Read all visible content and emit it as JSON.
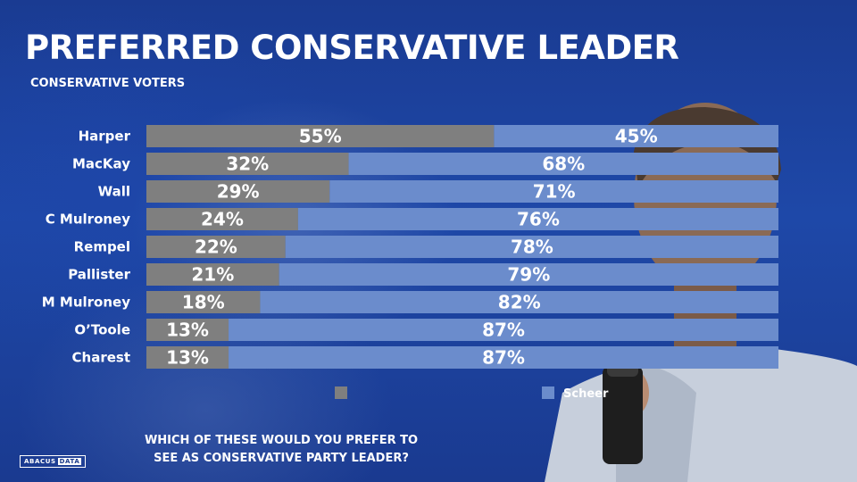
{
  "header": {
    "title": "PREFERRED CONSERVATIVE LEADER",
    "subtitle": "CONSERVATIVE VOTERS"
  },
  "question": {
    "line1": "WHICH OF THESE WOULD YOU PREFER TO",
    "line2": "SEE AS CONSERVATIVE PARTY LEADER?"
  },
  "logo": {
    "part1": "ABACUS",
    "part2": "DATA"
  },
  "colors": {
    "candidate": "#7f7f7f",
    "scheer": "#6b8ccc",
    "background": "#1a3a8a"
  },
  "chart_data": {
    "type": "bar",
    "orientation": "horizontal",
    "stacked": true,
    "percent": true,
    "categories": [
      "Harper",
      "MacKay",
      "Wall",
      "C Mulroney",
      "Rempel",
      "Pallister",
      "M Mulroney",
      "O’Toole",
      "Charest"
    ],
    "series": [
      {
        "name": "",
        "color": "#7f7f7f",
        "values": [
          55,
          32,
          29,
          24,
          22,
          21,
          18,
          13,
          13
        ]
      },
      {
        "name": "Scheer",
        "color": "#6b8ccc",
        "values": [
          45,
          68,
          71,
          76,
          78,
          79,
          82,
          87,
          87
        ]
      }
    ],
    "xlim": [
      0,
      100
    ],
    "legend": "bottom",
    "grid": false
  }
}
